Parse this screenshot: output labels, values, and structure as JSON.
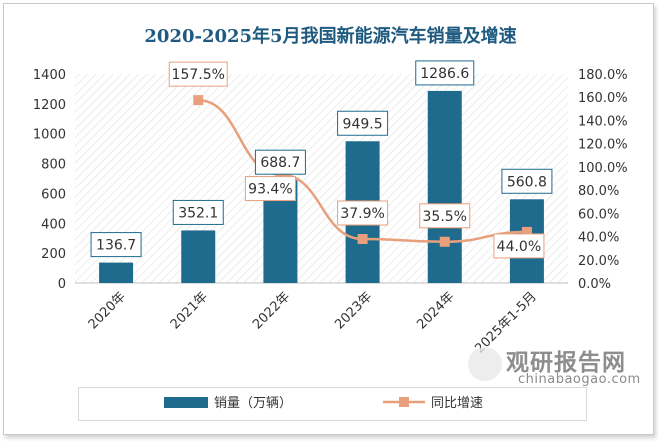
{
  "chart_data": {
    "type": "bar",
    "title": "2020-2025年5月我国新能源汽车销量及增速",
    "categories": [
      "2020年",
      "2021年",
      "2022年",
      "2023年",
      "2024年",
      "2025年1-5月"
    ],
    "series": [
      {
        "name": "销量（万辆）",
        "type": "bar",
        "axis": "left",
        "values": [
          136.7,
          352.1,
          688.7,
          949.5,
          1286.6,
          560.8
        ],
        "labels": [
          "136.7",
          "352.1",
          "688.7",
          "949.5",
          "1286.6",
          "560.8"
        ],
        "color": "#1f6b8e"
      },
      {
        "name": "同比增速",
        "type": "line",
        "axis": "right",
        "values": [
          null,
          157.5,
          93.4,
          37.9,
          35.5,
          44.0
        ],
        "labels": [
          "",
          "157.5%",
          "93.4%",
          "37.9%",
          "35.5%",
          "44.0%"
        ],
        "color": "#e8a07c"
      }
    ],
    "y_left": {
      "ylim": [
        0,
        1400
      ],
      "ticks": [
        "0",
        "200",
        "400",
        "600",
        "800",
        "1000",
        "1200",
        "1400"
      ]
    },
    "y_right": {
      "ylim": [
        0,
        180
      ],
      "ticks": [
        "0.0%",
        "20.0%",
        "40.0%",
        "60.0%",
        "80.0%",
        "100.0%",
        "120.0%",
        "140.0%",
        "160.0%",
        "180.0%"
      ]
    },
    "grid": false,
    "legend": "bottom"
  },
  "watermark": {
    "brand": "观研报告网",
    "domain": "chinabaogao.com"
  },
  "colors": {
    "bar": "#1f6b8e",
    "line": "#e8a07c",
    "bar_label_border": "#1f6b8e",
    "line_label_border": "#e8a07c",
    "title": "#1f5a80"
  }
}
